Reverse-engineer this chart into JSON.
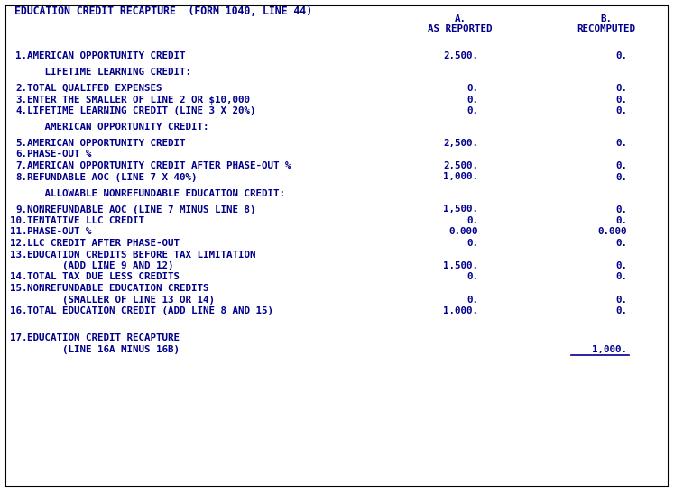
{
  "title": "EDUCATION CREDIT RECAPTURE  (FORM 1040, LINE 44)",
  "bg_color": "#FFFFFF",
  "border_color": "#000000",
  "text_color": "#00008B",
  "font_size": 7.8,
  "rows": [
    {
      "num": "",
      "label": "",
      "a": "",
      "b": "",
      "section": false,
      "gap_before": false
    },
    {
      "num": "1.",
      "label": "AMERICAN OPPORTUNITY CREDIT",
      "a": "2,500.",
      "b": "0.",
      "section": false,
      "gap_before": true
    },
    {
      "num": "",
      "label": "   LIFETIME LEARNING CREDIT:",
      "a": "",
      "b": "",
      "section": true,
      "gap_before": true
    },
    {
      "num": "2.",
      "label": "TOTAL QUALIFED EXPENSES",
      "a": "0.",
      "b": "0.",
      "section": false,
      "gap_before": true
    },
    {
      "num": "3.",
      "label": "ENTER THE SMALLER OF LINE 2 OR $10,000",
      "a": "0.",
      "b": "0.",
      "section": false,
      "gap_before": false
    },
    {
      "num": "4.",
      "label": "LIFETIME LEARNING CREDIT (LINE 3 X 20%)",
      "a": "0.",
      "b": "0.",
      "section": false,
      "gap_before": false
    },
    {
      "num": "",
      "label": "   AMERICAN OPPORTUNITY CREDIT:",
      "a": "",
      "b": "",
      "section": true,
      "gap_before": true
    },
    {
      "num": "5.",
      "label": "AMERICAN OPPORTUNITY CREDIT",
      "a": "2,500.",
      "b": "0.",
      "section": false,
      "gap_before": true
    },
    {
      "num": "6.",
      "label": "PHASE-OUT %",
      "a": "",
      "b": "",
      "section": false,
      "gap_before": false
    },
    {
      "num": "7.",
      "label": "AMERICAN OPPORTUNITY CREDIT AFTER PHASE-OUT %",
      "a": "2,500.",
      "b": "0.",
      "section": false,
      "gap_before": false
    },
    {
      "num": "8.",
      "label": "REFUNDABLE AOC (LINE 7 X 40%)",
      "a": "1,000.",
      "b": "0.",
      "section": false,
      "gap_before": false
    },
    {
      "num": "",
      "label": "   ALLOWABLE NONREFUNDABLE EDUCATION CREDIT:",
      "a": "",
      "b": "",
      "section": true,
      "gap_before": true
    },
    {
      "num": "9.",
      "label": "NONREFUNDABLE AOC (LINE 7 MINUS LINE 8)",
      "a": "1,500.",
      "b": "0.",
      "section": false,
      "gap_before": true
    },
    {
      "num": "10.",
      "label": "TENTATIVE LLC CREDIT",
      "a": "0.",
      "b": "0.",
      "section": false,
      "gap_before": false
    },
    {
      "num": "11.",
      "label": "PHASE-OUT %",
      "a": "0.000",
      "b": "0.000",
      "section": false,
      "gap_before": false
    },
    {
      "num": "12.",
      "label": "LLC CREDIT AFTER PHASE-OUT",
      "a": "0.",
      "b": "0.",
      "section": false,
      "gap_before": false
    },
    {
      "num": "13.",
      "label": "EDUCATION CREDITS BEFORE TAX LIMITATION",
      "a": "",
      "b": "",
      "section": false,
      "gap_before": false
    },
    {
      "num": "",
      "label": "      (ADD LINE 9 AND 12)",
      "a": "1,500.",
      "b": "0.",
      "section": false,
      "gap_before": false
    },
    {
      "num": "14.",
      "label": "TOTAL TAX DUE LESS CREDITS",
      "a": "0.",
      "b": "0.",
      "section": false,
      "gap_before": false
    },
    {
      "num": "15.",
      "label": "NONREFUNDABLE EDUCATION CREDITS",
      "a": "",
      "b": "",
      "section": false,
      "gap_before": false
    },
    {
      "num": "",
      "label": "      (SMALLER OF LINE 13 OR 14)",
      "a": "0.",
      "b": "0.",
      "section": false,
      "gap_before": false
    },
    {
      "num": "16.",
      "label": "TOTAL EDUCATION CREDIT (ADD LINE 8 AND 15)",
      "a": "1,000.",
      "b": "0.",
      "section": false,
      "gap_before": false
    },
    {
      "num": "",
      "label": "",
      "a": "",
      "b": "",
      "section": false,
      "gap_before": true
    },
    {
      "num": "17.",
      "label": "EDUCATION CREDIT RECAPTURE",
      "a": "",
      "b": "",
      "section": false,
      "gap_before": false
    },
    {
      "num": "",
      "label": "      (LINE 16A MINUS 16B)",
      "a": "",
      "b": "1,000.",
      "section": false,
      "gap_before": false,
      "underline_b": true
    }
  ]
}
